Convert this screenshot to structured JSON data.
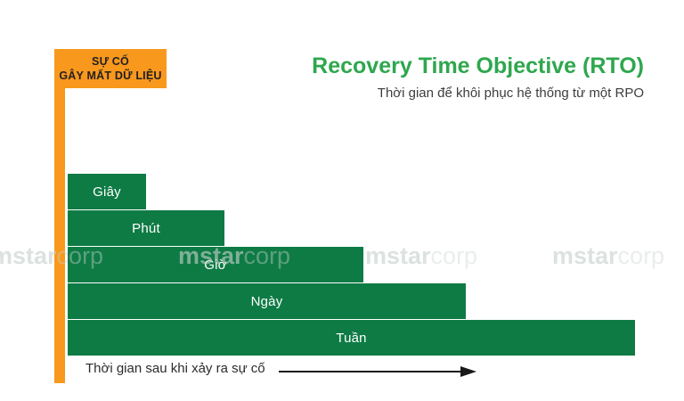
{
  "colors": {
    "orange": "#F8981D",
    "bar_green": "#0E7B45",
    "title_green": "#2EA74E",
    "bar_label": "#FFFFFF",
    "arrow": "#1A1A1A"
  },
  "incident_label": {
    "line1": "SỰ CỐ",
    "line2": "GÂY MẤT DỮ LIỆU"
  },
  "header": {
    "title": "Recovery Time Objective (RTO)",
    "subtitle": "Thời gian để khôi phục hệ thống từ một RPO"
  },
  "chart_data": {
    "type": "bar",
    "orientation": "horizontal",
    "title": "Recovery Time Objective (RTO)",
    "subtitle": "Thời gian để khôi phục hệ thống từ một RPO",
    "categories": [
      "Giây",
      "Phút",
      "Giờ",
      "Ngày",
      "Tuần"
    ],
    "values": [
      88,
      176,
      332,
      447,
      637
    ],
    "values_note": "relative bar lengths (no numeric axis shown)",
    "xlabel": "Thời gian sau khi xảy ra sự cố",
    "origin_label": "SỰ CỐ GÂY MẤT DỮ LIỆU",
    "bar_color": "#0E7B45",
    "grid": false,
    "legend": "none"
  },
  "axis": {
    "caption": "Thời gian sau khi xảy ra sự cố"
  },
  "watermark": {
    "bold_part": "mstar",
    "light_part": "corp",
    "instances": 4
  }
}
